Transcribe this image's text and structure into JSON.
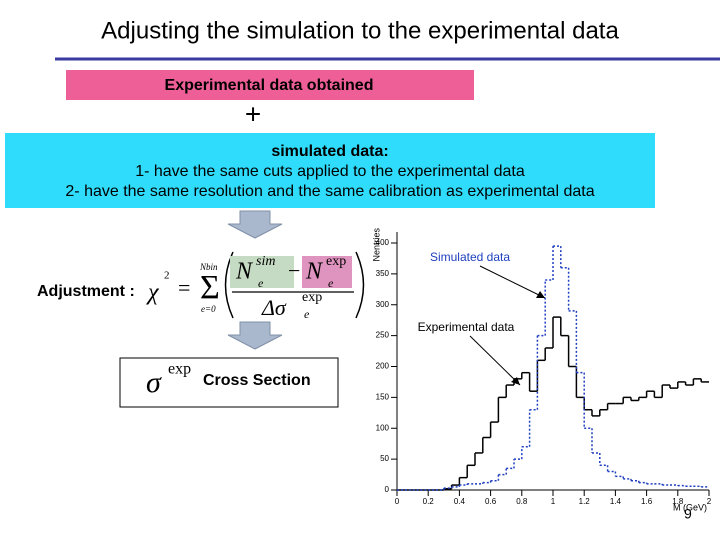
{
  "slide": {
    "title": "Adjusting the simulation to the experimental data",
    "box1": "Experimental data obtained",
    "plus": "+",
    "box2": [
      "simulated data:",
      "1- have the same cuts applied to the experimental data",
      "2- have the same resolution and the same calibration as experimental data"
    ],
    "adjustment": "Adjustment :",
    "formula": {
      "chi": "χ",
      "square": "2",
      "equals": "=",
      "sum": "Σ",
      "upper": "Nbin",
      "lower": "e=0",
      "n": "N",
      "sub": "e",
      "sim": "sim",
      "minus": "−",
      "exp": "exp",
      "delta": "Δσ"
    },
    "sigma": "σ",
    "sigma_exp": "exp",
    "cross_section": "Cross Section",
    "page_number": "9"
  },
  "chart_data": {
    "type": "histogram",
    "ylabel": "Nentries",
    "xlabel": "M (GeV)",
    "annotations": [
      "Simulated data",
      "Experimental data"
    ],
    "bins": [
      0,
      0.05,
      0.1,
      0.15,
      0.2,
      0.25,
      0.3,
      0.35,
      0.4,
      0.45,
      0.5,
      0.55,
      0.6,
      0.65,
      0.7,
      0.75,
      0.8,
      0.85,
      0.9,
      0.95,
      1,
      1.05,
      1.1,
      1.15,
      1.2,
      1.25,
      1.3,
      1.35,
      1.4,
      1.45,
      1.5,
      1.55,
      1.6,
      1.65,
      1.7,
      1.75,
      1.8,
      1.85,
      1.9,
      1.95,
      2
    ],
    "series": [
      {
        "name": "Experimental data",
        "color": "#000000",
        "dash": false,
        "values": [
          0,
          0,
          0,
          0,
          0,
          0,
          2,
          8,
          20,
          40,
          60,
          85,
          110,
          150,
          170,
          180,
          190,
          160,
          210,
          230,
          280,
          250,
          200,
          150,
          130,
          120,
          130,
          140,
          140,
          150,
          145,
          150,
          160,
          150,
          170,
          165,
          175,
          170,
          180,
          175
        ]
      },
      {
        "name": "Simulated data",
        "color": "#1f3fbf",
        "dash": true,
        "values": [
          0,
          0,
          0,
          0,
          0,
          0,
          3,
          5,
          8,
          10,
          10,
          12,
          15,
          25,
          35,
          50,
          70,
          130,
          250,
          340,
          395,
          360,
          290,
          190,
          100,
          60,
          40,
          30,
          22,
          18,
          15,
          12,
          10,
          10,
          8,
          8,
          7,
          6,
          6,
          5
        ]
      }
    ],
    "xlim": [
      0,
      2
    ],
    "ylim": [
      0,
      400
    ],
    "xticks": [
      0,
      0.2,
      0.4,
      0.6,
      0.8,
      1,
      1.2,
      1.4,
      1.6,
      1.8,
      2
    ],
    "yticks": [
      0,
      50,
      100,
      150,
      200,
      250,
      300,
      350,
      400
    ]
  }
}
